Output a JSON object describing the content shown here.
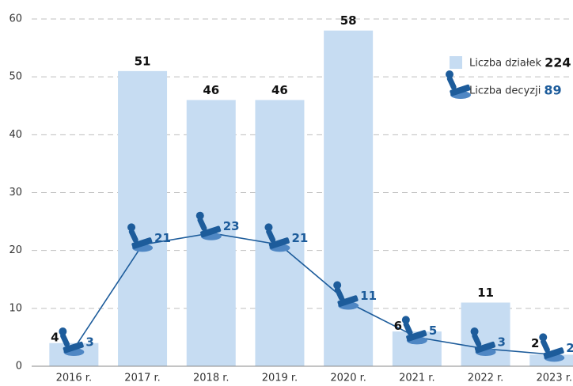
{
  "chart_data": {
    "type": "bar_line",
    "categories": [
      "2016 r.",
      "2017 r.",
      "2018 r.",
      "2019 r.",
      "2020 r.",
      "2021 r.",
      "2022 r.",
      "2023 r."
    ],
    "series": [
      {
        "name": "Liczba działek",
        "type": "bar",
        "color": "#c6dcf2",
        "values": [
          4,
          51,
          46,
          46,
          58,
          6,
          11,
          2
        ],
        "total": 224
      },
      {
        "name": "Liczba  decyzji",
        "type": "line",
        "color": "#1d5c9b",
        "values": [
          3,
          21,
          23,
          21,
          11,
          5,
          3,
          2
        ],
        "total": 89
      }
    ],
    "ylim": [
      0,
      60
    ],
    "yticks": [
      0,
      10,
      20,
      30,
      40,
      50,
      60
    ],
    "grid": true,
    "legend": "top-right"
  }
}
